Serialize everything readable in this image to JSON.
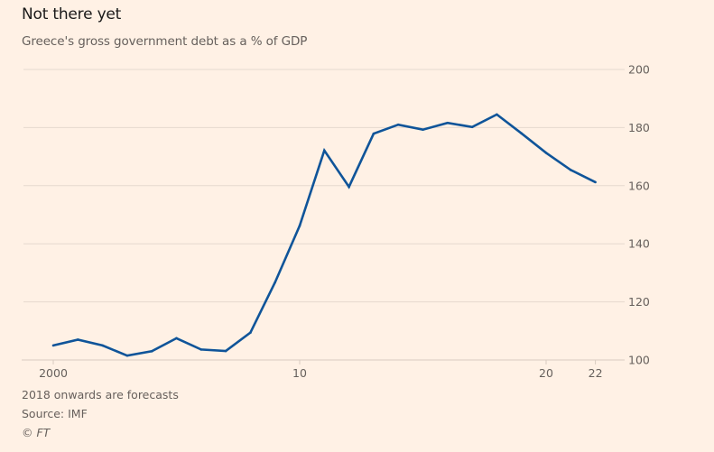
{
  "chart_data": {
    "type": "line",
    "title": "Not there yet",
    "subtitle": "Greece's gross government debt as a % of GDP",
    "xlabel": "",
    "ylabel": "",
    "x": [
      2000,
      2001,
      2002,
      2003,
      2004,
      2005,
      2006,
      2007,
      2008,
      2009,
      2010,
      2011,
      2012,
      2013,
      2014,
      2015,
      2016,
      2017,
      2018,
      2019,
      2020,
      2021,
      2022
    ],
    "series": [
      {
        "name": "Gross government debt (% of GDP)",
        "color": "#0F5499",
        "values": [
          105.0,
          107.0,
          105.0,
          101.5,
          103.0,
          107.5,
          103.6,
          103.1,
          109.4,
          126.7,
          146.2,
          172.1,
          159.6,
          177.9,
          181.0,
          179.3,
          181.6,
          180.2,
          184.5,
          178.0,
          171.3,
          165.4,
          161.2
        ]
      }
    ],
    "xlim": [
      1999,
      2023
    ],
    "ylim": [
      100,
      200
    ],
    "x_ticks": [
      {
        "value": 2000,
        "label": "2000"
      },
      {
        "value": 2010,
        "label": "10"
      },
      {
        "value": 2020,
        "label": "20"
      },
      {
        "value": 2022,
        "label": "22"
      }
    ],
    "y_ticks": [
      {
        "value": 100,
        "label": "100"
      },
      {
        "value": 120,
        "label": "120"
      },
      {
        "value": 140,
        "label": "140"
      },
      {
        "value": 160,
        "label": "160"
      },
      {
        "value": 180,
        "label": "180"
      },
      {
        "value": 200,
        "label": "200"
      }
    ],
    "y_axis_side": "right",
    "grid": true,
    "legend": "none"
  },
  "notes": {
    "forecast": "2018 onwards are forecasts",
    "source": "Source: IMF",
    "copyright": "© FT"
  },
  "colors": {
    "background": "#FFF1E5",
    "line": "#0F5499",
    "grid": "#E6D9CE",
    "text_muted": "#66605C"
  }
}
